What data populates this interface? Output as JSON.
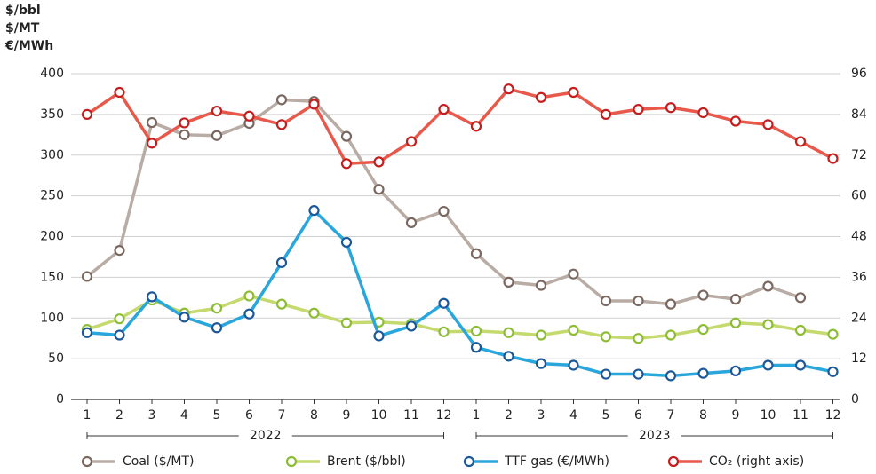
{
  "chart_data": {
    "type": "line",
    "y_label": [
      "$/bbl",
      "$/MT",
      "€/MWh"
    ],
    "categories": [
      "1",
      "2",
      "3",
      "4",
      "5",
      "6",
      "7",
      "8",
      "9",
      "10",
      "11",
      "12",
      "1",
      "2",
      "3",
      "4",
      "5",
      "6",
      "7",
      "8",
      "9",
      "10",
      "11",
      "12"
    ],
    "x_groups": [
      "2022",
      "2023"
    ],
    "ylim": [
      0,
      400
    ],
    "yticks": [
      0,
      50,
      100,
      150,
      200,
      250,
      300,
      350,
      400
    ],
    "y2lim": [
      0,
      96
    ],
    "y2ticks": [
      0,
      12,
      24,
      36,
      48,
      60,
      72,
      84,
      96
    ],
    "grid": true,
    "legend": "bottom",
    "series": [
      {
        "name": "Coal ($/MT)",
        "color": "#b8aca5",
        "marker_color": "#7a6860",
        "values": [
          151,
          183,
          340,
          325,
          324,
          339,
          368,
          366,
          323,
          258,
          217,
          231,
          179,
          144,
          140,
          154,
          121,
          121,
          117,
          128,
          123,
          139,
          125,
          null
        ]
      },
      {
        "name": "Brent ($/bbl)",
        "color": "#c5da6e",
        "marker_color": "#8dbd34",
        "values": [
          86,
          99,
          122,
          106,
          112,
          127,
          117,
          106,
          94,
          95,
          93,
          83,
          84,
          82,
          79,
          85,
          77,
          75,
          79,
          86,
          94,
          92,
          85,
          80
        ]
      },
      {
        "name": "TTF gas (€/MWh)",
        "color": "#29a6dc",
        "marker_color": "#1c5899",
        "values": [
          82,
          79,
          126,
          101,
          88,
          105,
          168,
          232,
          193,
          78,
          90,
          118,
          64,
          53,
          44,
          42,
          31,
          31,
          29,
          32,
          35,
          42,
          42,
          34
        ]
      },
      {
        "name": "CO₂ (right axis)",
        "color": "#e8584b",
        "marker_color": "#c41e1e",
        "axis": "y2",
        "values": [
          84,
          90.5,
          75.5,
          81.5,
          85,
          83.5,
          81,
          87,
          69.5,
          70,
          76,
          85.5,
          80.5,
          91.5,
          89,
          90.5,
          84,
          85.5,
          86,
          84.5,
          82,
          81,
          76,
          71
        ]
      }
    ]
  }
}
